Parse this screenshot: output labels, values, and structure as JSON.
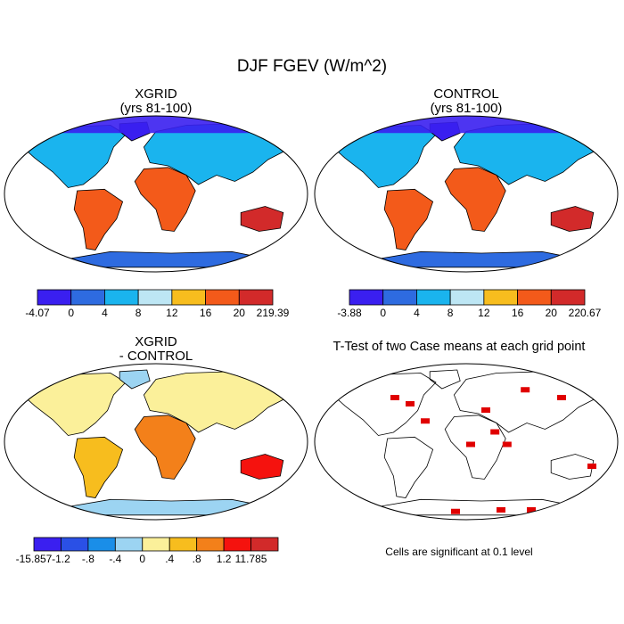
{
  "title": "DJF FGEV (W/m^2)",
  "panels": [
    {
      "title_line1": "XGRID",
      "title_line2": "(yrs 81-100)",
      "colorbar": {
        "colors": [
          "#3a1ff0",
          "#2e6be0",
          "#1ab4ee",
          "#bde6f4",
          "#f7bd1e",
          "#f35a1a",
          "#d22a2a"
        ],
        "labels": [
          "-4.07",
          "0",
          "4",
          "8",
          "12",
          "16",
          "20",
          "219.39"
        ]
      }
    },
    {
      "title_line1": "CONTROL",
      "title_line2": "(yrs 81-100)",
      "colorbar": {
        "colors": [
          "#3a1ff0",
          "#2e6be0",
          "#1ab4ee",
          "#bde6f4",
          "#f7bd1e",
          "#f35a1a",
          "#d22a2a"
        ],
        "labels": [
          "-3.88",
          "0",
          "4",
          "8",
          "12",
          "16",
          "20",
          "220.67"
        ]
      }
    },
    {
      "title_line1": "XGRID",
      "title_line2": "- CONTROL",
      "colorbar": {
        "colors": [
          "#3a1ff0",
          "#2a50e6",
          "#1a8ee8",
          "#9cd4f2",
          "#fbf09a",
          "#f7bd1e",
          "#f3801a",
          "#f5120e",
          "#d22a2a"
        ],
        "labels": [
          "-15.857",
          "-1.2",
          "-.8",
          "-.4",
          "0",
          ".4",
          ".8",
          "1.2",
          "11.785"
        ]
      }
    },
    {
      "title": "T-Test of two Case means at each grid point",
      "note": "Cells are significant at 0.1 level",
      "sig_color": "#e00000"
    }
  ]
}
